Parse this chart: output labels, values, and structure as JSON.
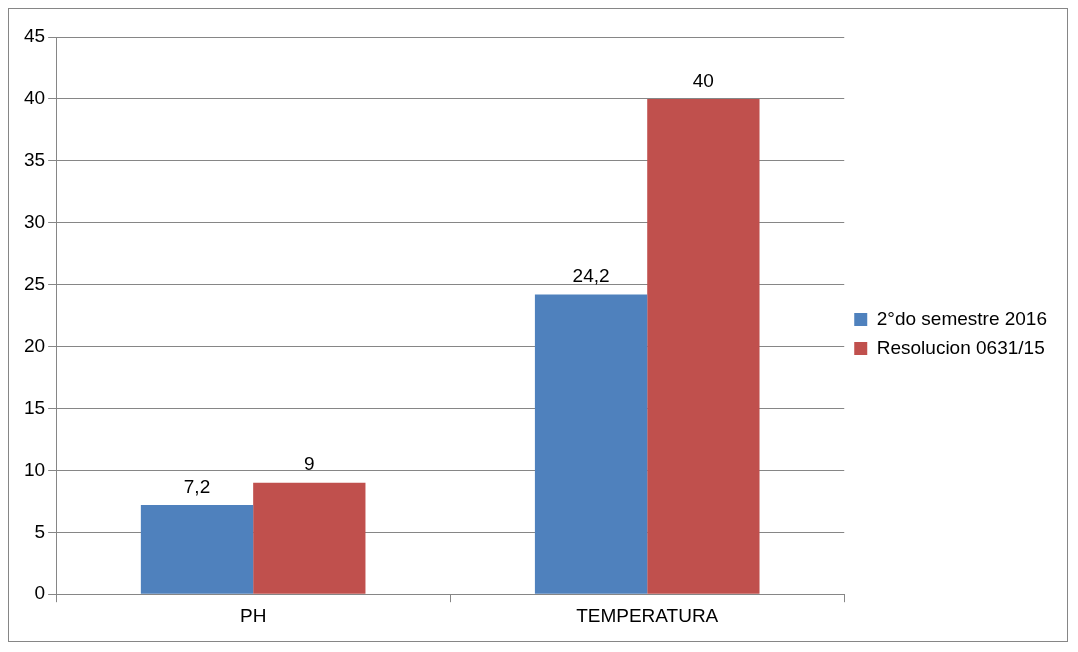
{
  "chart_data": {
    "type": "bar",
    "categories": [
      "PH",
      "TEMPERATURA"
    ],
    "series": [
      {
        "name": "2°do semestre 2016",
        "color": "#4f81bd",
        "values": [
          7.2,
          24.2
        ],
        "value_labels": [
          "7,2",
          "24,2"
        ]
      },
      {
        "name": "Resolucion 0631/15",
        "color": "#c0504d",
        "values": [
          9,
          40
        ],
        "value_labels": [
          "9",
          "40"
        ]
      }
    ],
    "ylim": [
      0,
      45
    ],
    "yticks": [
      0,
      5,
      10,
      15,
      20,
      25,
      30,
      35,
      40,
      45
    ],
    "grid": "y",
    "legend": "right"
  }
}
